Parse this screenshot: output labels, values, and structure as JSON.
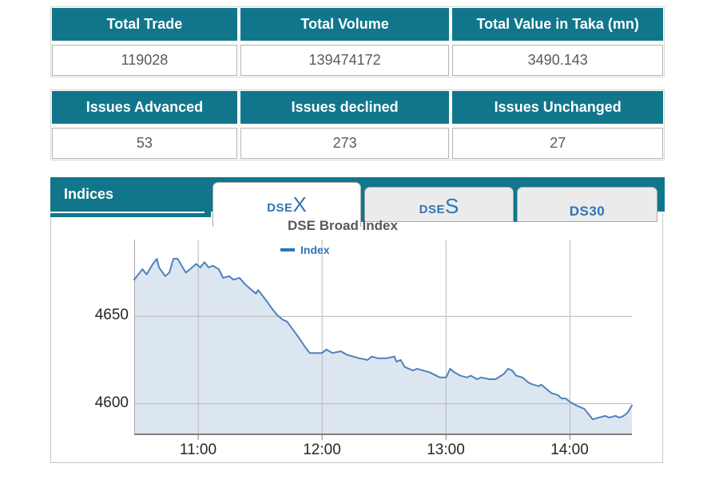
{
  "summary_table": {
    "headers": [
      "Total Trade",
      "Total Volume",
      "Total Value in Taka (mn)"
    ],
    "values": [
      "119028",
      "139474172",
      "3490.143"
    ]
  },
  "issues_table": {
    "headers": [
      "Issues Advanced",
      "Issues declined",
      "Issues Unchanged"
    ],
    "values": [
      "53",
      "273",
      "27"
    ]
  },
  "indices_panel": {
    "label": "Indices",
    "tabs": [
      {
        "id": "dsex",
        "prefix": "DSE",
        "suffix": "X",
        "active": true
      },
      {
        "id": "dses",
        "prefix": "DSE",
        "suffix": "S",
        "active": false
      },
      {
        "id": "ds30",
        "prefix": "DS30",
        "suffix": "",
        "active": false
      }
    ]
  },
  "colors": {
    "header_teal": "#11768B",
    "tab_blue": "#2E75B5",
    "line_blue": "#4F81BD",
    "area_fill": "#DCE6F1",
    "title_gray": "#595959"
  },
  "chart_data": {
    "type": "area",
    "title": "DSE Broad Index",
    "legend": [
      {
        "label": "Index",
        "color": "#2E75B5"
      }
    ],
    "x_ticks": [
      "11:00",
      "12:00",
      "13:00",
      "14:00"
    ],
    "y_ticks": [
      4650,
      4600
    ],
    "x_range": [
      "10:29",
      "14:30"
    ],
    "y_range": [
      4582,
      4694
    ],
    "grid": true,
    "line_color": "#4F81BD",
    "fill_color": "#DCE6F1",
    "points": [
      [
        "10:29",
        4671
      ],
      [
        "10:31",
        4674
      ],
      [
        "10:33",
        4677
      ],
      [
        "10:35",
        4674
      ],
      [
        "10:38",
        4680
      ],
      [
        "10:40",
        4683
      ],
      [
        "10:41",
        4678
      ],
      [
        "10:44",
        4673
      ],
      [
        "10:46",
        4675
      ],
      [
        "10:48",
        4683
      ],
      [
        "10:50",
        4683
      ],
      [
        "10:51",
        4681
      ],
      [
        "10:53",
        4677
      ],
      [
        "10:54",
        4675
      ],
      [
        "10:57",
        4678
      ],
      [
        "10:59",
        4680
      ],
      [
        "11:01",
        4678
      ],
      [
        "11:03",
        4681
      ],
      [
        "11:05",
        4678
      ],
      [
        "11:07",
        4679
      ],
      [
        "11:10",
        4677
      ],
      [
        "11:12",
        4672
      ],
      [
        "11:15",
        4673
      ],
      [
        "11:17",
        4671
      ],
      [
        "11:20",
        4672
      ],
      [
        "11:23",
        4668
      ],
      [
        "11:25",
        4666
      ],
      [
        "11:28",
        4663
      ],
      [
        "11:29",
        4665
      ],
      [
        "11:31",
        4662
      ],
      [
        "11:33",
        4659
      ],
      [
        "11:36",
        4654
      ],
      [
        "11:38",
        4651
      ],
      [
        "11:41",
        4648
      ],
      [
        "11:43",
        4647
      ],
      [
        "11:48",
        4639
      ],
      [
        "11:52",
        4632
      ],
      [
        "11:54",
        4629
      ],
      [
        "11:57",
        4629
      ],
      [
        "12:00",
        4629
      ],
      [
        "12:02",
        4631
      ],
      [
        "12:05",
        4629
      ],
      [
        "12:09",
        4630
      ],
      [
        "12:12",
        4628
      ],
      [
        "12:15",
        4627
      ],
      [
        "12:18",
        4626
      ],
      [
        "12:22",
        4625
      ],
      [
        "12:24",
        4627
      ],
      [
        "12:27",
        4626
      ],
      [
        "12:31",
        4626
      ],
      [
        "12:35",
        4627
      ],
      [
        "12:36",
        4624
      ],
      [
        "12:38",
        4625
      ],
      [
        "12:40",
        4621
      ],
      [
        "12:44",
        4619
      ],
      [
        "12:46",
        4620
      ],
      [
        "12:52",
        4618
      ],
      [
        "12:57",
        4615
      ],
      [
        "13:00",
        4615
      ],
      [
        "13:02",
        4620
      ],
      [
        "13:04",
        4618
      ],
      [
        "13:07",
        4616
      ],
      [
        "13:10",
        4615
      ],
      [
        "13:12",
        4616
      ],
      [
        "13:15",
        4614
      ],
      [
        "13:17",
        4615
      ],
      [
        "13:21",
        4614
      ],
      [
        "13:24",
        4614
      ],
      [
        "13:28",
        4617
      ],
      [
        "13:30",
        4620
      ],
      [
        "13:32",
        4619
      ],
      [
        "13:34",
        4616
      ],
      [
        "13:37",
        4615
      ],
      [
        "13:40",
        4612
      ],
      [
        "13:42",
        4611
      ],
      [
        "13:45",
        4610
      ],
      [
        "13:46",
        4611
      ],
      [
        "13:48",
        4609
      ],
      [
        "13:51",
        4606
      ],
      [
        "13:54",
        4605
      ],
      [
        "13:56",
        4603
      ],
      [
        "13:58",
        4603
      ],
      [
        "14:00",
        4601
      ],
      [
        "14:03",
        4599
      ],
      [
        "14:07",
        4597
      ],
      [
        "14:09",
        4594
      ],
      [
        "14:11",
        4591
      ],
      [
        "14:14",
        4592
      ],
      [
        "14:17",
        4593
      ],
      [
        "14:19",
        4592
      ],
      [
        "14:22",
        4593
      ],
      [
        "14:24",
        4592
      ],
      [
        "14:26",
        4593
      ],
      [
        "14:28",
        4595
      ],
      [
        "14:30",
        4599
      ]
    ]
  }
}
